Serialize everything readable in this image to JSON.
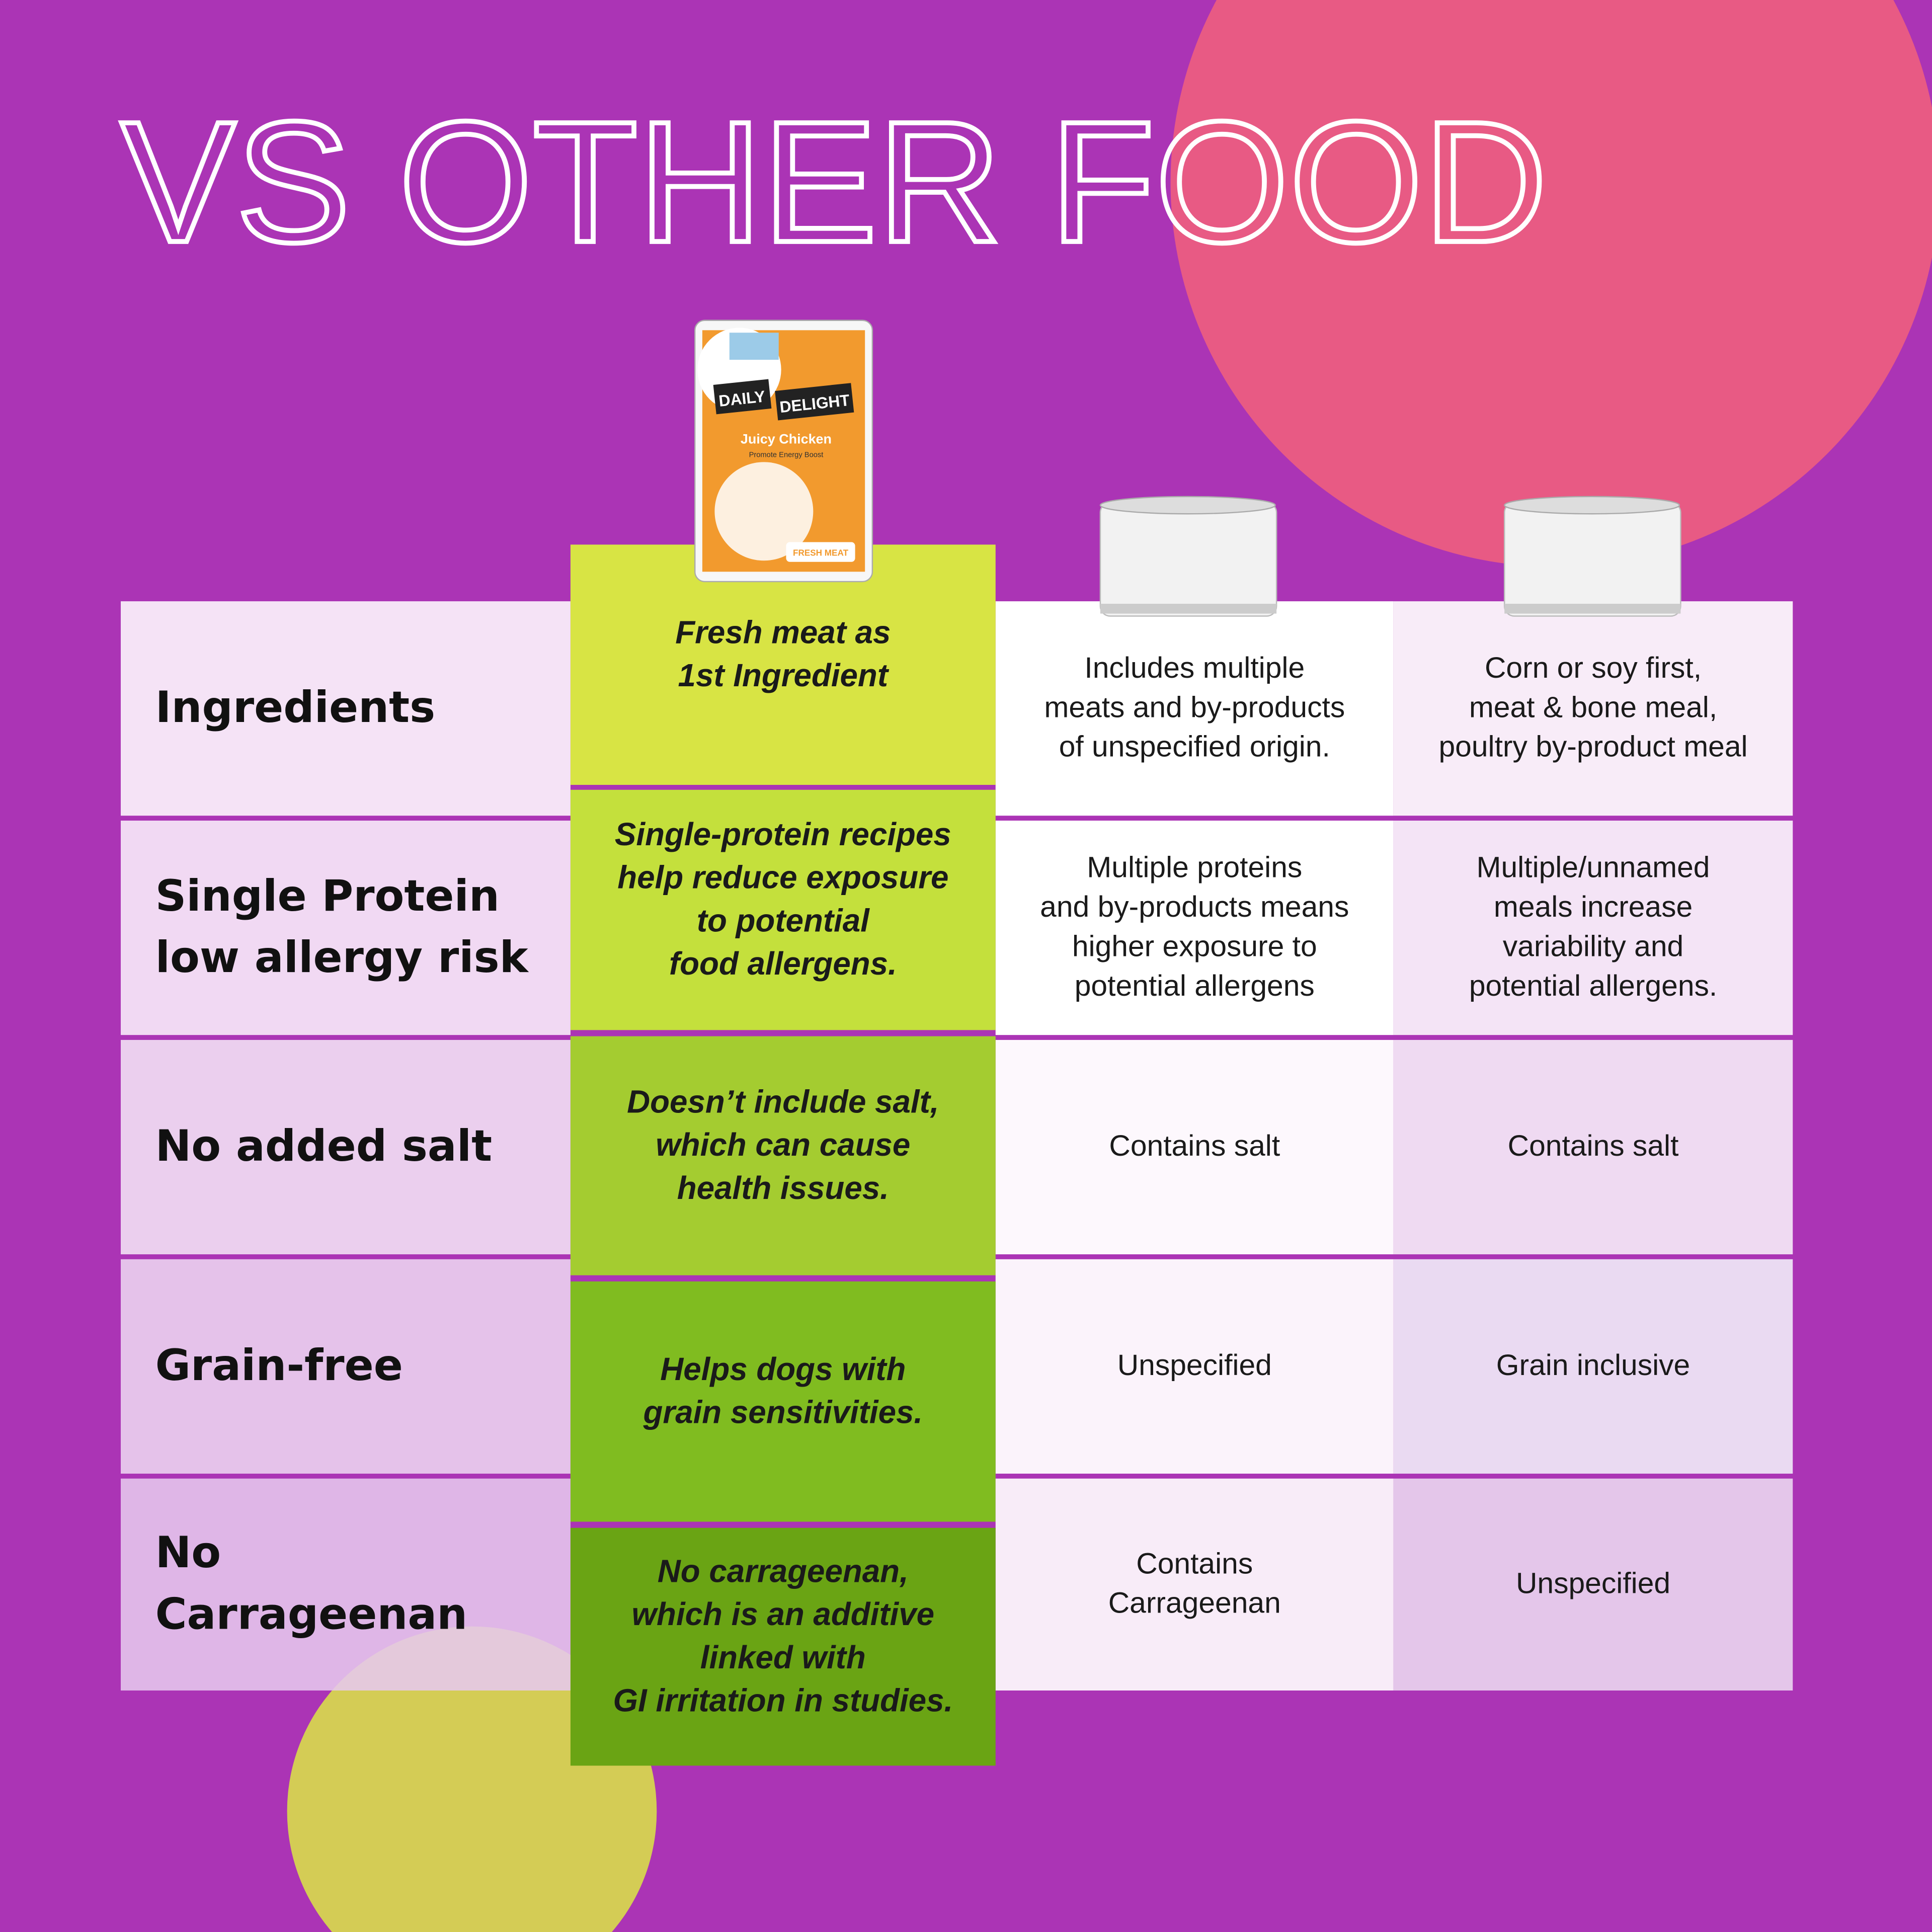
{
  "title": "VS OTHER FOOD",
  "can": {
    "brand_top": "DAILY",
    "brand_bottom": "DELIGHT",
    "flavor": "Juicy Chicken",
    "claim": "Promote Energy Boost",
    "badge": "FRESH MEAT"
  },
  "rows": [
    {
      "label": "Ingredients",
      "ours": "Fresh meat as\n1st Ingredient",
      "other1": "Includes multiple\nmeats and by-products\nof unspecified origin.",
      "other2": "Corn or soy first,\nmeat & bone meal,\npoultry by-product meal"
    },
    {
      "label": "Single Protein\nlow allergy risk",
      "ours": "Single-protein recipes\nhelp reduce exposure\nto potential\nfood allergens.",
      "other1": "Multiple proteins\nand by-products means\nhigher exposure to\npotential allergens",
      "other2": "Multiple/unnamed\nmeals increase\nvariability and\npotential allergens."
    },
    {
      "label": "No added salt",
      "ours": "Doesn’t include salt,\nwhich can cause\nhealth issues.",
      "other1": "Contains salt",
      "other2": "Contains salt"
    },
    {
      "label": "Grain-free",
      "ours": "Helps dogs with\ngrain sensitivities.",
      "other1": "Unspecified",
      "other2": "Grain inclusive"
    },
    {
      "label": "No\nCarrageenan",
      "ours": "No carrageenan,\nwhich is an additive\nlinked with\nGI irritation in studies.",
      "other1": "Contains\nCarrageenan",
      "other2": "Unspecified"
    }
  ]
}
